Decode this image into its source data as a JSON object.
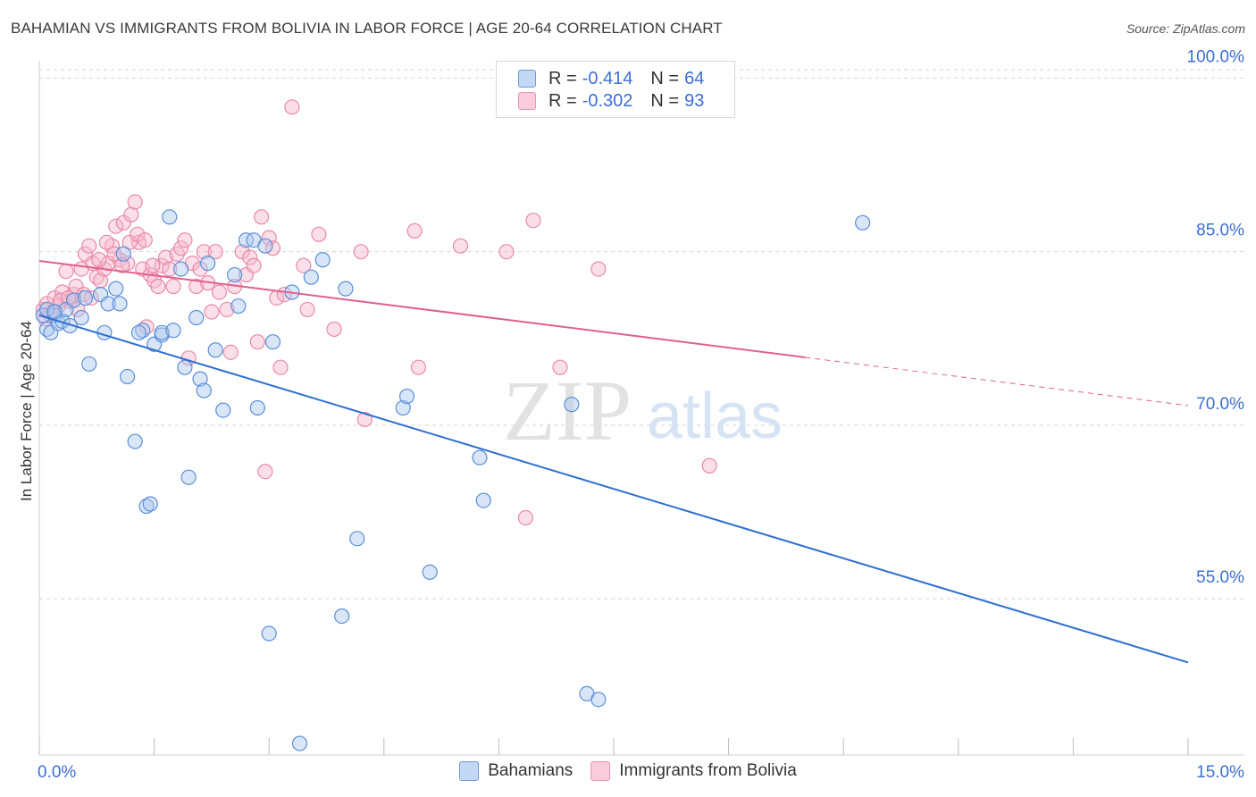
{
  "header": {
    "title": "BAHAMIAN VS IMMIGRANTS FROM BOLIVIA IN LABOR FORCE | AGE 20-64 CORRELATION CHART",
    "source": "Source: ZipAtlas.com"
  },
  "legend": {
    "rows": [
      {
        "r_label": "R =",
        "r_value": "-0.414",
        "n_label": "N =",
        "n_value": "64"
      },
      {
        "r_label": "R =",
        "r_value": "-0.302",
        "n_label": "N =",
        "n_value": "93"
      }
    ]
  },
  "bottom_legend": {
    "series_a": "Bahamians",
    "series_b": "Immigrants from Bolivia"
  },
  "watermark": {
    "zip": "ZIP",
    "atlas": "atlas"
  },
  "chart_data": {
    "type": "scatter",
    "title": "BAHAMIAN VS IMMIGRANTS FROM BOLIVIA IN LABOR FORCE | AGE 20-64 CORRELATION CHART",
    "xlabel": "",
    "ylabel": "In Labor Force | Age 20-64",
    "xlim": [
      0,
      15
    ],
    "ylim": [
      41.5,
      101.5
    ],
    "x_tick_labels": [
      "0.0%",
      "15.0%"
    ],
    "y_ticks": [
      55,
      70,
      85,
      100
    ],
    "y_tick_labels": [
      "55.0%",
      "70.0%",
      "85.0%",
      "100.0%"
    ],
    "grid": true,
    "colors": {
      "blue_fill": "#aac8f0",
      "blue_stroke": "#5b8fd8",
      "blue_line": "#2f6fd0",
      "pink_fill": "#f6b9cc",
      "pink_stroke": "#e88aa8",
      "pink_line": "#e0608e",
      "tick_label": "#3b6fd3",
      "grid": "#d6d6d6"
    },
    "series": [
      {
        "name": "Bahamians",
        "color": "blue",
        "trend": {
          "x0": 0.0,
          "y0": 79.5,
          "x1": 15.0,
          "y1": 49.5,
          "dashed_from": null
        },
        "points": [
          [
            0.05,
            79.5
          ],
          [
            0.1,
            78.3
          ],
          [
            0.15,
            78.0
          ],
          [
            0.2,
            79.5
          ],
          [
            0.25,
            78.8
          ],
          [
            0.3,
            79.0
          ],
          [
            0.35,
            80.0
          ],
          [
            0.4,
            78.6
          ],
          [
            0.45,
            80.8
          ],
          [
            0.55,
            79.3
          ],
          [
            0.6,
            81.0
          ],
          [
            0.65,
            75.3
          ],
          [
            0.8,
            81.3
          ],
          [
            0.85,
            78.0
          ],
          [
            0.9,
            80.5
          ],
          [
            1.05,
            80.5
          ],
          [
            1.1,
            84.8
          ],
          [
            1.15,
            74.2
          ],
          [
            1.25,
            68.6
          ],
          [
            1.35,
            78.2
          ],
          [
            1.4,
            63.0
          ],
          [
            1.45,
            63.2
          ],
          [
            1.5,
            77.0
          ],
          [
            1.6,
            77.8
          ],
          [
            1.6,
            78.0
          ],
          [
            1.7,
            88.0
          ],
          [
            1.75,
            78.2
          ],
          [
            1.85,
            83.5
          ],
          [
            1.9,
            75.0
          ],
          [
            1.95,
            65.5
          ],
          [
            2.05,
            79.3
          ],
          [
            2.1,
            74.0
          ],
          [
            2.15,
            73.0
          ],
          [
            2.2,
            84.0
          ],
          [
            2.3,
            76.5
          ],
          [
            2.4,
            71.3
          ],
          [
            2.55,
            83.0
          ],
          [
            2.6,
            80.3
          ],
          [
            2.7,
            86.0
          ],
          [
            2.8,
            86.0
          ],
          [
            2.85,
            71.5
          ],
          [
            2.95,
            85.5
          ],
          [
            3.0,
            52.0
          ],
          [
            3.05,
            77.2
          ],
          [
            3.3,
            81.5
          ],
          [
            3.4,
            42.5
          ],
          [
            3.55,
            82.8
          ],
          [
            3.7,
            84.3
          ],
          [
            3.95,
            53.5
          ],
          [
            4.0,
            81.8
          ],
          [
            4.15,
            60.2
          ],
          [
            4.75,
            71.5
          ],
          [
            4.8,
            72.5
          ],
          [
            5.1,
            57.3
          ],
          [
            5.75,
            67.2
          ],
          [
            5.8,
            63.5
          ],
          [
            6.95,
            71.8
          ],
          [
            7.15,
            46.8
          ],
          [
            7.3,
            46.3
          ],
          [
            10.75,
            87.5
          ],
          [
            0.1,
            80.0
          ],
          [
            0.2,
            79.8
          ],
          [
            1.0,
            81.8
          ],
          [
            1.3,
            78.0
          ]
        ]
      },
      {
        "name": "Immigrants from Bolivia",
        "color": "pink",
        "trend": {
          "x0": 0.0,
          "y0": 84.2,
          "x1": 15.0,
          "y1": 71.7,
          "dashed_from": 10.0
        },
        "points": [
          [
            0.05,
            80.0
          ],
          [
            0.1,
            80.5
          ],
          [
            0.15,
            79.5
          ],
          [
            0.2,
            81.0
          ],
          [
            0.25,
            80.3
          ],
          [
            0.3,
            81.5
          ],
          [
            0.35,
            83.3
          ],
          [
            0.4,
            80.7
          ],
          [
            0.45,
            81.3
          ],
          [
            0.5,
            80.0
          ],
          [
            0.55,
            83.5
          ],
          [
            0.6,
            84.8
          ],
          [
            0.65,
            85.5
          ],
          [
            0.7,
            84.0
          ],
          [
            0.75,
            82.8
          ],
          [
            0.8,
            82.5
          ],
          [
            0.85,
            83.5
          ],
          [
            0.9,
            84.0
          ],
          [
            0.95,
            85.5
          ],
          [
            1.0,
            87.2
          ],
          [
            1.05,
            84.3
          ],
          [
            1.1,
            87.5
          ],
          [
            1.15,
            84.0
          ],
          [
            1.2,
            88.2
          ],
          [
            1.25,
            89.3
          ],
          [
            1.3,
            85.8
          ],
          [
            1.35,
            83.5
          ],
          [
            1.4,
            78.5
          ],
          [
            1.45,
            83.0
          ],
          [
            1.5,
            82.5
          ],
          [
            1.55,
            82.0
          ],
          [
            1.6,
            83.8
          ],
          [
            1.65,
            84.5
          ],
          [
            1.7,
            83.5
          ],
          [
            1.75,
            82.0
          ],
          [
            1.8,
            84.8
          ],
          [
            1.85,
            85.3
          ],
          [
            1.9,
            86.0
          ],
          [
            1.95,
            75.8
          ],
          [
            2.0,
            84.0
          ],
          [
            2.05,
            82.0
          ],
          [
            2.1,
            83.5
          ],
          [
            2.15,
            85.0
          ],
          [
            2.2,
            82.3
          ],
          [
            2.25,
            79.8
          ],
          [
            2.3,
            85.0
          ],
          [
            2.35,
            81.5
          ],
          [
            2.45,
            80.0
          ],
          [
            2.5,
            76.3
          ],
          [
            2.55,
            82.0
          ],
          [
            2.65,
            85.0
          ],
          [
            2.7,
            83.0
          ],
          [
            2.75,
            84.5
          ],
          [
            2.8,
            83.8
          ],
          [
            2.85,
            77.2
          ],
          [
            2.9,
            88.0
          ],
          [
            2.95,
            66.0
          ],
          [
            3.0,
            86.2
          ],
          [
            3.05,
            85.3
          ],
          [
            3.1,
            81.0
          ],
          [
            3.15,
            75.0
          ],
          [
            3.2,
            81.3
          ],
          [
            3.3,
            97.5
          ],
          [
            3.45,
            83.8
          ],
          [
            3.5,
            80.0
          ],
          [
            3.65,
            86.5
          ],
          [
            3.85,
            78.3
          ],
          [
            4.2,
            85.0
          ],
          [
            4.25,
            70.5
          ],
          [
            4.9,
            86.8
          ],
          [
            4.95,
            75.0
          ],
          [
            5.5,
            85.5
          ],
          [
            6.1,
            85.0
          ],
          [
            6.35,
            62.0
          ],
          [
            6.45,
            87.7
          ],
          [
            6.8,
            75.0
          ],
          [
            7.3,
            83.5
          ],
          [
            8.75,
            66.5
          ],
          [
            0.08,
            79.2
          ],
          [
            0.18,
            79.8
          ],
          [
            0.28,
            80.8
          ],
          [
            0.38,
            81.0
          ],
          [
            0.48,
            82.0
          ],
          [
            0.58,
            81.3
          ],
          [
            0.68,
            81.0
          ],
          [
            0.78,
            84.3
          ],
          [
            0.88,
            85.8
          ],
          [
            0.98,
            84.8
          ],
          [
            1.08,
            83.8
          ],
          [
            1.18,
            85.8
          ],
          [
            1.28,
            86.5
          ],
          [
            1.38,
            86.0
          ],
          [
            1.48,
            83.8
          ]
        ]
      }
    ]
  }
}
